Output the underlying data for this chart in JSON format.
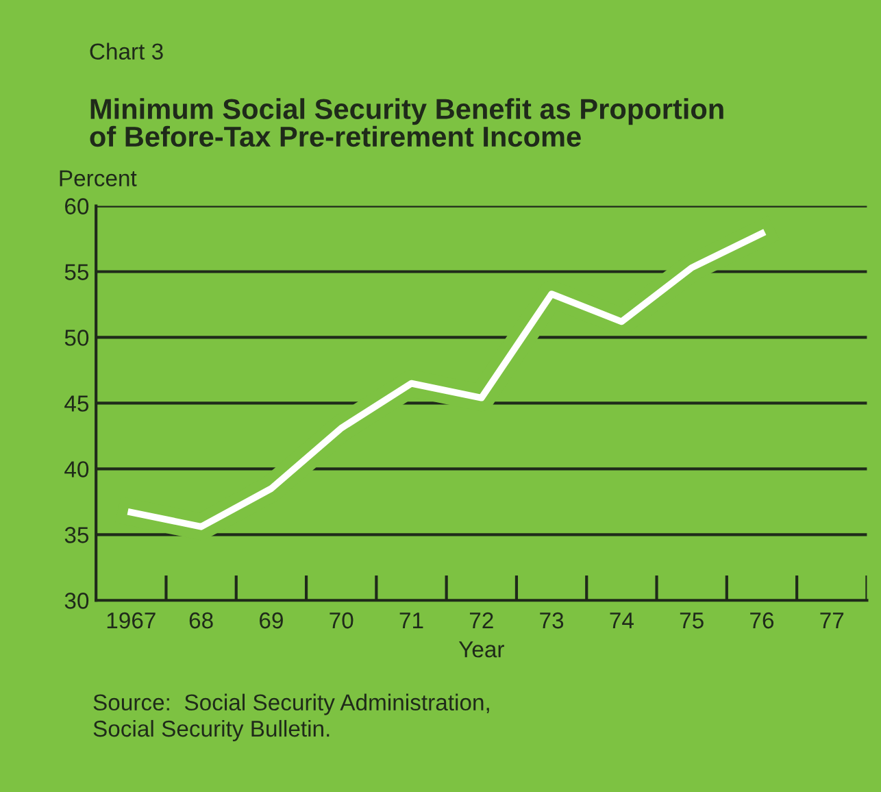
{
  "chart_data": {
    "type": "line",
    "title": "Minimum Social Security Benefit as Proportion\nof Before-Tax Pre-retirement Income",
    "ylabel": "Percent",
    "xlabel": "Year",
    "annotations": [
      "Chart 3",
      "Source:  Social Security Administration,\nSocial Security Bulletin."
    ],
    "x": [
      1967,
      1968,
      1969,
      1970,
      1971,
      1972,
      1973,
      1974,
      1975,
      1976
    ],
    "series": [
      {
        "color": "#ffffff",
        "values": [
          36.7,
          35.6,
          38.5,
          43.1,
          46.5,
          45.4,
          53.3,
          51.2,
          55.3,
          57.9
        ]
      }
    ],
    "xlim": [
      1966.5,
      1977.5
    ],
    "xticks": [
      {
        "value": 1967,
        "label": "1967"
      },
      {
        "value": 1968,
        "label": "68"
      },
      {
        "value": 1969,
        "label": "69"
      },
      {
        "value": 1970,
        "label": "70"
      },
      {
        "value": 1971,
        "label": "71"
      },
      {
        "value": 1972,
        "label": "72"
      },
      {
        "value": 1973,
        "label": "73"
      },
      {
        "value": 1974,
        "label": "74"
      },
      {
        "value": 1975,
        "label": "75"
      },
      {
        "value": 1976,
        "label": "76"
      },
      {
        "value": 1977,
        "label": "77"
      }
    ],
    "ylim": [
      30,
      60
    ],
    "yticks": [
      30,
      35,
      40,
      45,
      50,
      55,
      60
    ],
    "grid": "y",
    "legend": false,
    "marker": "none",
    "line_style": "solid"
  }
}
